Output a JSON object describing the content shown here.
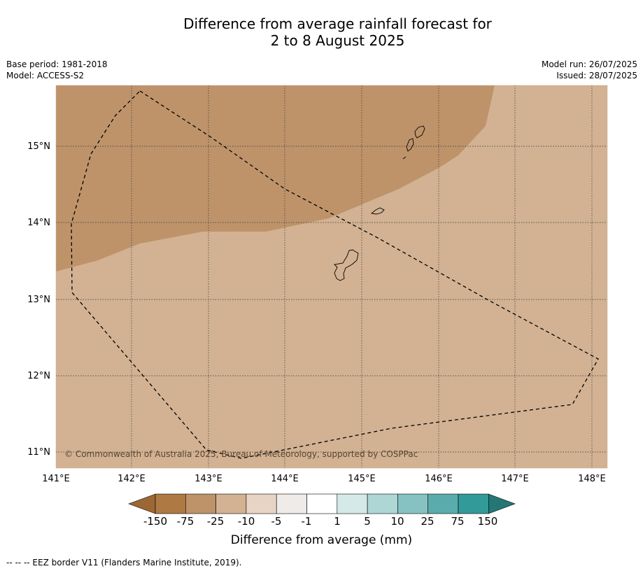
{
  "title": {
    "line1": "Difference from average rainfall forecast for",
    "line2": "2 to 8 August 2025"
  },
  "meta_left": {
    "base_period": "Base period: 1981-2018",
    "model": "Model: ACCESS-S2"
  },
  "meta_right": {
    "model_run": "Model run: 26/07/2025",
    "issued": "Issued: 28/07/2025"
  },
  "map": {
    "lat_labels": [
      "15°N",
      "14°N",
      "13°N",
      "12°N",
      "11°N"
    ],
    "lon_labels": [
      "141°E",
      "142°E",
      "143°E",
      "144°E",
      "145°E",
      "146°E",
      "147°E",
      "148°E"
    ],
    "copyright": "© Commonwealth of Australia 2025, Bureau of Meteorology, supported by COSPPac",
    "regions": [
      {
        "category": "-75 to -25",
        "color": "#be936a"
      },
      {
        "category": "-25 to -10",
        "color": "#d2b293"
      }
    ]
  },
  "colorbar": {
    "labels": [
      "-150",
      "-75",
      "-25",
      "-10",
      "-5",
      "-1",
      "1",
      "5",
      "10",
      "25",
      "75",
      "150"
    ],
    "colors": [
      "#9c6735",
      "#ae7942",
      "#be936a",
      "#d2b293",
      "#e8d4c4",
      "#efebe8",
      "#ffffff",
      "#d6e9e9",
      "#add6d5",
      "#85c2c1",
      "#5aacac",
      "#329a98",
      "#247775"
    ],
    "title": "Difference from average (mm)"
  },
  "footer": {
    "eez": "--  --  -- EEZ border V11 (Flanders Marine Institute, 2019)."
  }
}
